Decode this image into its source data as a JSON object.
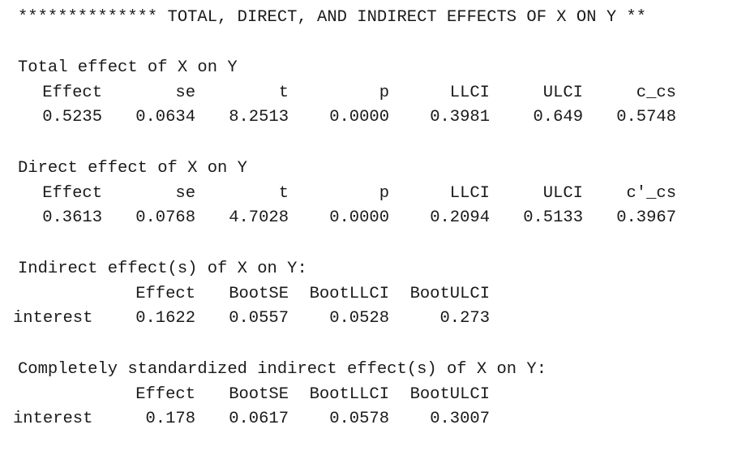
{
  "output": {
    "heading": "************** TOTAL, DIRECT, AND INDIRECT EFFECTS OF X ON Y **",
    "total": {
      "title": "Total effect of X on Y",
      "headers": [
        "Effect",
        "se",
        "t",
        "p",
        "LLCI",
        "ULCI",
        "c_cs"
      ],
      "values": [
        "0.5235",
        "0.0634",
        "8.2513",
        "0.0000",
        "0.3981",
        "0.649",
        "0.5748"
      ]
    },
    "direct": {
      "title": "Direct effect of X on Y",
      "headers": [
        "Effect",
        "se",
        "t",
        "p",
        "LLCI",
        "ULCI",
        "c'_cs"
      ],
      "values": [
        "0.3613",
        "0.0768",
        "4.7028",
        "0.0000",
        "0.2094",
        "0.5133",
        "0.3967"
      ]
    },
    "indirect": {
      "title": "Indirect effect(s) of X on Y:",
      "headers": [
        "Effect",
        "BootSE",
        "BootLLCI",
        "BootULCI"
      ],
      "row_label": "interest",
      "values": [
        "0.1622",
        "0.0557",
        "0.0528",
        "0.273"
      ]
    },
    "std_indirect": {
      "title": "Completely standardized indirect effect(s) of X on Y:",
      "headers": [
        "Effect",
        "BootSE",
        "BootLLCI",
        "BootULCI"
      ],
      "row_label": "interest",
      "values": [
        "0.178",
        "0.0617",
        "0.0578",
        "0.3007"
      ]
    }
  }
}
